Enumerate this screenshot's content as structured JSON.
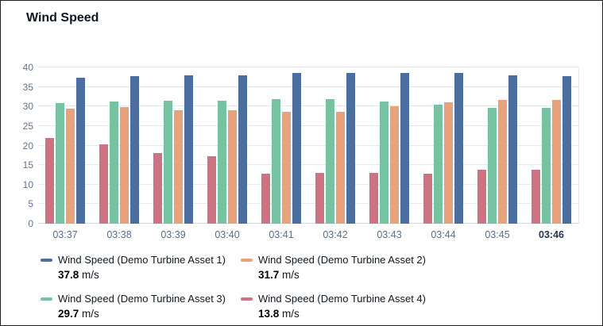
{
  "chart_data": {
    "type": "bar",
    "title": "Wind Speed",
    "unit": "m/s",
    "categories": [
      "03:37",
      "03:38",
      "03:39",
      "03:40",
      "03:41",
      "03:42",
      "03:43",
      "03:44",
      "03:45",
      "03:46"
    ],
    "series": [
      {
        "name": "Wind Speed (Demo Turbine Asset 1)",
        "color": "#4c6e9e",
        "values": [
          37.3,
          37.7,
          37.9,
          38.0,
          38.6,
          38.6,
          38.6,
          38.5,
          38.0,
          37.8
        ]
      },
      {
        "name": "Wind Speed (Demo Turbine Asset 2)",
        "color": "#e8a37c",
        "values": [
          29.5,
          29.8,
          29.1,
          29.0,
          28.6,
          28.7,
          30.0,
          31.0,
          31.6,
          31.7
        ]
      },
      {
        "name": "Wind Speed (Demo Turbine Asset 3)",
        "color": "#76c2a2",
        "values": [
          30.9,
          31.2,
          31.5,
          31.5,
          31.9,
          31.9,
          31.2,
          30.4,
          29.7,
          29.7
        ]
      },
      {
        "name": "Wind Speed (Demo Turbine Asset 4)",
        "color": "#cc7484",
        "values": [
          22.0,
          20.4,
          18.0,
          17.3,
          12.8,
          12.9,
          13.0,
          12.7,
          13.8,
          13.8
        ]
      }
    ],
    "draw_order": [
      3,
      2,
      1,
      0
    ],
    "ylim": [
      0,
      40
    ],
    "yticks": [
      0,
      5,
      10,
      15,
      20,
      25,
      30,
      35,
      40
    ],
    "grid": true,
    "legend_position": "bottom",
    "last_tick_emphasized": true
  },
  "legend": {
    "items": [
      {
        "label": "Wind Speed (Demo Turbine Asset 1)",
        "value": "37.8",
        "unit": "m/s",
        "color": "#4c6e9e"
      },
      {
        "label": "Wind Speed (Demo Turbine Asset 2)",
        "value": "31.7",
        "unit": "m/s",
        "color": "#e8a37c"
      },
      {
        "label": "Wind Speed (Demo Turbine Asset 3)",
        "value": "29.7",
        "unit": "m/s",
        "color": "#76c2a2"
      },
      {
        "label": "Wind Speed (Demo Turbine Asset 4)",
        "value": "13.8",
        "unit": "m/s",
        "color": "#cc7484"
      }
    ]
  }
}
